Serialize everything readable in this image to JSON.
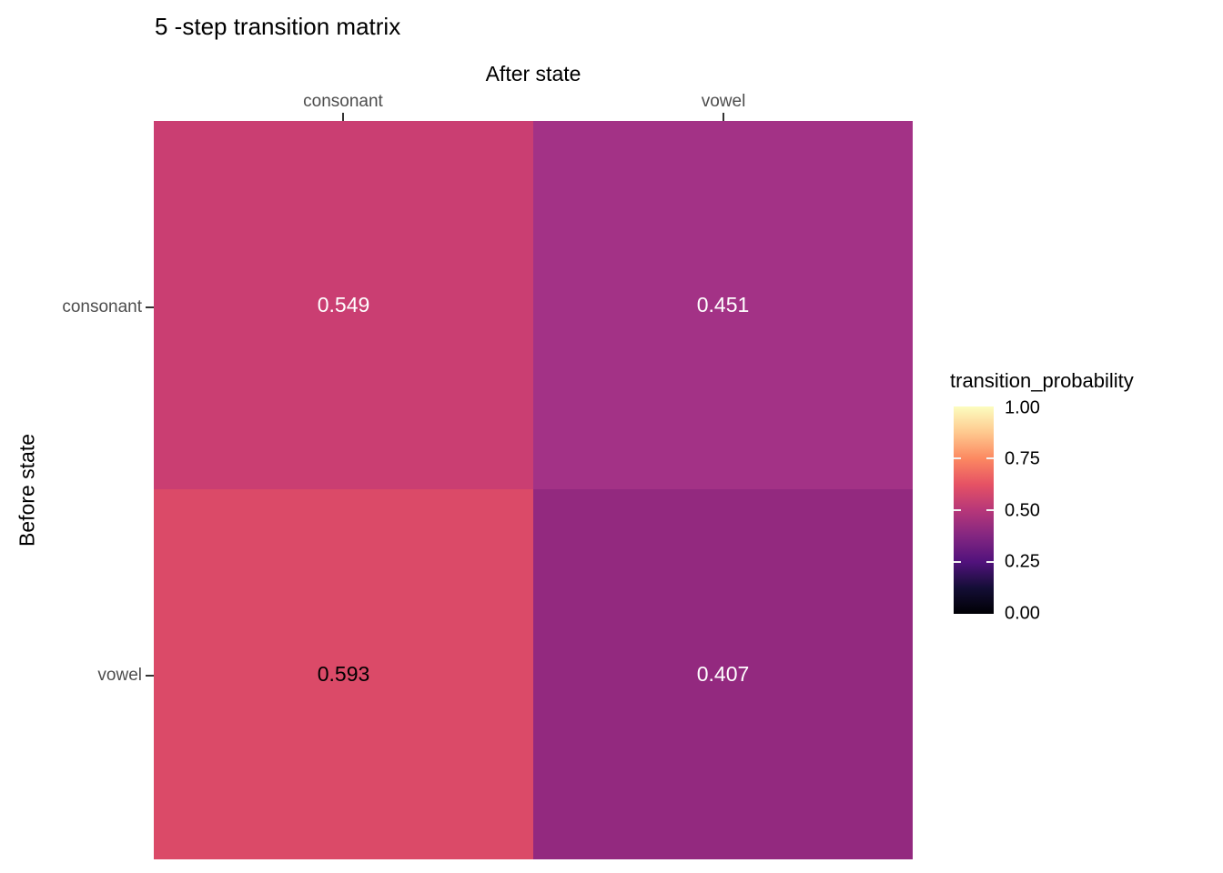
{
  "chart_data": {
    "type": "heatmap",
    "title": "5 -step transition matrix",
    "x_axis": {
      "label": "After state",
      "position": "top",
      "categories": [
        "consonant",
        "vowel"
      ]
    },
    "y_axis": {
      "label": "Before state",
      "position": "left",
      "categories": [
        "consonant",
        "vowel"
      ]
    },
    "values": [
      [
        0.549,
        0.451
      ],
      [
        0.593,
        0.407
      ]
    ],
    "cell_labels": [
      [
        "0.549",
        "0.451"
      ],
      [
        "0.593",
        "0.407"
      ]
    ],
    "cell_colors": [
      [
        "#ca3e72",
        "#a33286"
      ],
      [
        "#db4a68",
        "#93297f"
      ]
    ],
    "cell_text_colors": [
      [
        "#ffffff",
        "#ffffff"
      ],
      [
        "#000000",
        "#ffffff"
      ]
    ],
    "grid": "off",
    "legend": {
      "title": "transition_probability",
      "position": "right",
      "orientation": "vertical",
      "range": [
        0.0,
        1.0
      ],
      "tick_labels": [
        "1.00",
        "0.75",
        "0.50",
        "0.25",
        "0.00"
      ],
      "tick_values": [
        1.0,
        0.75,
        0.5,
        0.25,
        0.0
      ],
      "colormap": "magma",
      "gradient_stops": [
        {
          "pos": 0.0,
          "color": "#000004"
        },
        {
          "pos": 0.125,
          "color": "#140e36"
        },
        {
          "pos": 0.25,
          "color": "#51127c"
        },
        {
          "pos": 0.375,
          "color": "#832681"
        },
        {
          "pos": 0.5,
          "color": "#b73779"
        },
        {
          "pos": 0.625,
          "color": "#e65264"
        },
        {
          "pos": 0.75,
          "color": "#fc8961"
        },
        {
          "pos": 0.875,
          "color": "#fec98f"
        },
        {
          "pos": 1.0,
          "color": "#fcfdbf"
        }
      ]
    }
  }
}
